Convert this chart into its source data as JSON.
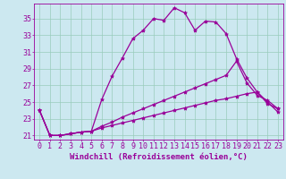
{
  "xlabel": "Windchill (Refroidissement éolien,°C)",
  "bg_color": "#cce8f0",
  "line_color": "#990099",
  "xlim": [
    -0.5,
    23.5
  ],
  "ylim": [
    20.5,
    36.8
  ],
  "yticks": [
    21,
    23,
    25,
    27,
    29,
    31,
    33,
    35
  ],
  "xticks": [
    0,
    1,
    2,
    3,
    4,
    5,
    6,
    7,
    8,
    9,
    10,
    11,
    12,
    13,
    14,
    15,
    16,
    17,
    18,
    19,
    20,
    21,
    22,
    23
  ],
  "grid_color": "#99ccbb",
  "curve1_x": [
    0,
    1,
    2,
    3,
    4,
    5,
    6,
    7,
    8,
    9,
    10,
    11,
    12,
    13,
    14,
    15,
    16,
    17,
    18,
    19,
    20,
    21,
    22,
    23
  ],
  "curve1_y": [
    24.0,
    21.0,
    21.0,
    21.2,
    21.4,
    21.5,
    25.3,
    28.1,
    30.3,
    32.6,
    33.6,
    35.0,
    34.8,
    36.3,
    35.7,
    33.6,
    34.7,
    34.6,
    33.2,
    30.2,
    27.9,
    26.2,
    25.0,
    23.8
  ],
  "curve2_x": [
    0,
    1,
    2,
    3,
    4,
    5,
    6,
    7,
    8,
    9,
    10,
    11,
    12,
    13,
    14,
    15,
    16,
    17,
    18,
    19,
    20,
    21,
    22,
    23
  ],
  "curve2_y": [
    24.0,
    21.0,
    21.0,
    21.2,
    21.4,
    21.5,
    22.1,
    22.6,
    23.2,
    23.7,
    24.2,
    24.7,
    25.2,
    25.7,
    26.2,
    26.7,
    27.2,
    27.7,
    28.2,
    29.9,
    27.3,
    25.8,
    25.2,
    24.2
  ],
  "curve3_x": [
    0,
    1,
    2,
    3,
    4,
    5,
    6,
    7,
    8,
    9,
    10,
    11,
    12,
    13,
    14,
    15,
    16,
    17,
    18,
    19,
    20,
    21,
    22,
    23
  ],
  "curve3_y": [
    24.0,
    21.0,
    21.0,
    21.2,
    21.4,
    21.5,
    21.9,
    22.2,
    22.5,
    22.8,
    23.1,
    23.4,
    23.7,
    24.0,
    24.3,
    24.6,
    24.9,
    25.2,
    25.4,
    25.7,
    26.0,
    26.2,
    24.8,
    24.2
  ],
  "marker": "*",
  "markersize": 3,
  "linewidth": 0.9,
  "font_size_tick": 6,
  "font_size_label": 6.5
}
